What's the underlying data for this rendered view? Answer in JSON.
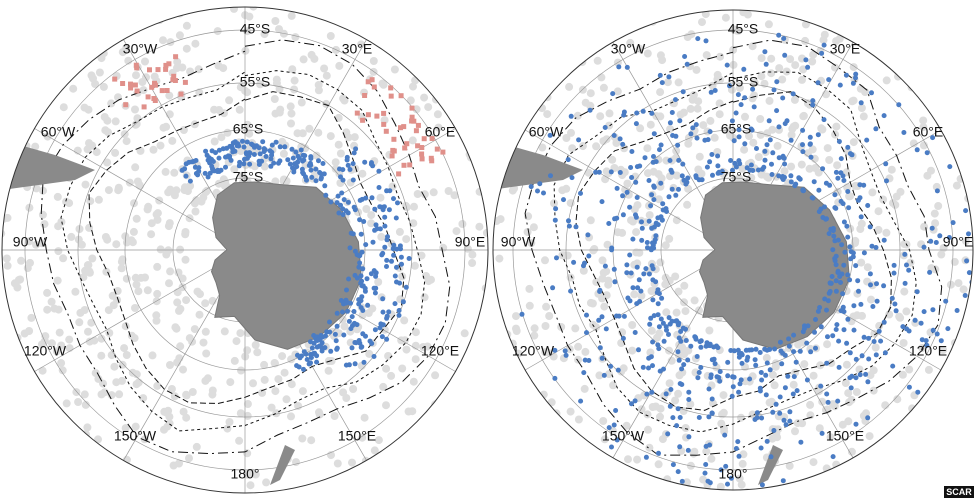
{
  "maps": [
    {
      "labels": {
        "lat": [
          "45°S",
          "55°S",
          "65°S",
          "75°S"
        ],
        "lon": [
          "30°W",
          "30°E",
          "60°W",
          "60°E",
          "90°W",
          "90°E",
          "120°W",
          "120°E",
          "150°W",
          "150°E",
          "180°"
        ]
      }
    },
    {
      "labels": {
        "lat": [
          "45°S",
          "55°S",
          "65°S",
          "75°S"
        ],
        "lon": [
          "30°W",
          "30°E",
          "60°W",
          "60°E",
          "90°W",
          "90°E",
          "120°W",
          "120°E",
          "150°W",
          "150°E",
          "180°"
        ]
      }
    }
  ],
  "credit": "SCAR"
}
